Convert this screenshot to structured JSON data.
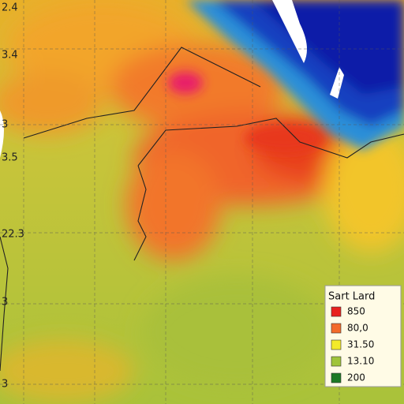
{
  "axis_labels": [
    "2.4",
    "3.4",
    "3",
    "3.5",
    "22.3",
    "3",
    "3"
  ],
  "legend": {
    "title": "Sart Lard",
    "items": [
      {
        "label": "850",
        "color": "#e8211d"
      },
      {
        "label": "80,0",
        "color": "#f36a2a"
      },
      {
        "label": "31.50",
        "color": "#f3ea2a"
      },
      {
        "label": "13.10",
        "color": "#9fc43a"
      },
      {
        "label": "200",
        "color": "#1c7a25"
      }
    ]
  }
}
